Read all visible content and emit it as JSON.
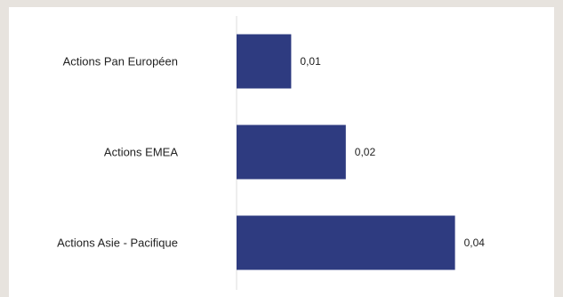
{
  "colors": {
    "background": "#e7e3de",
    "panel": "#ffffff",
    "bar": "#2e3b80",
    "axis": "#dcdcdc",
    "text": "#222222"
  },
  "chart_data": {
    "type": "bar",
    "orientation": "horizontal",
    "categories": [
      "Actions Pan Européen",
      "Actions EMEA",
      "Actions Asie - Pacifique"
    ],
    "values": [
      0.01,
      0.02,
      0.04
    ],
    "value_labels": [
      "0,01",
      "0,02",
      "0,04"
    ],
    "title": "",
    "xlabel": "",
    "ylabel": "",
    "xlim": [
      0,
      0.05
    ],
    "grid": false,
    "legend": "none"
  }
}
